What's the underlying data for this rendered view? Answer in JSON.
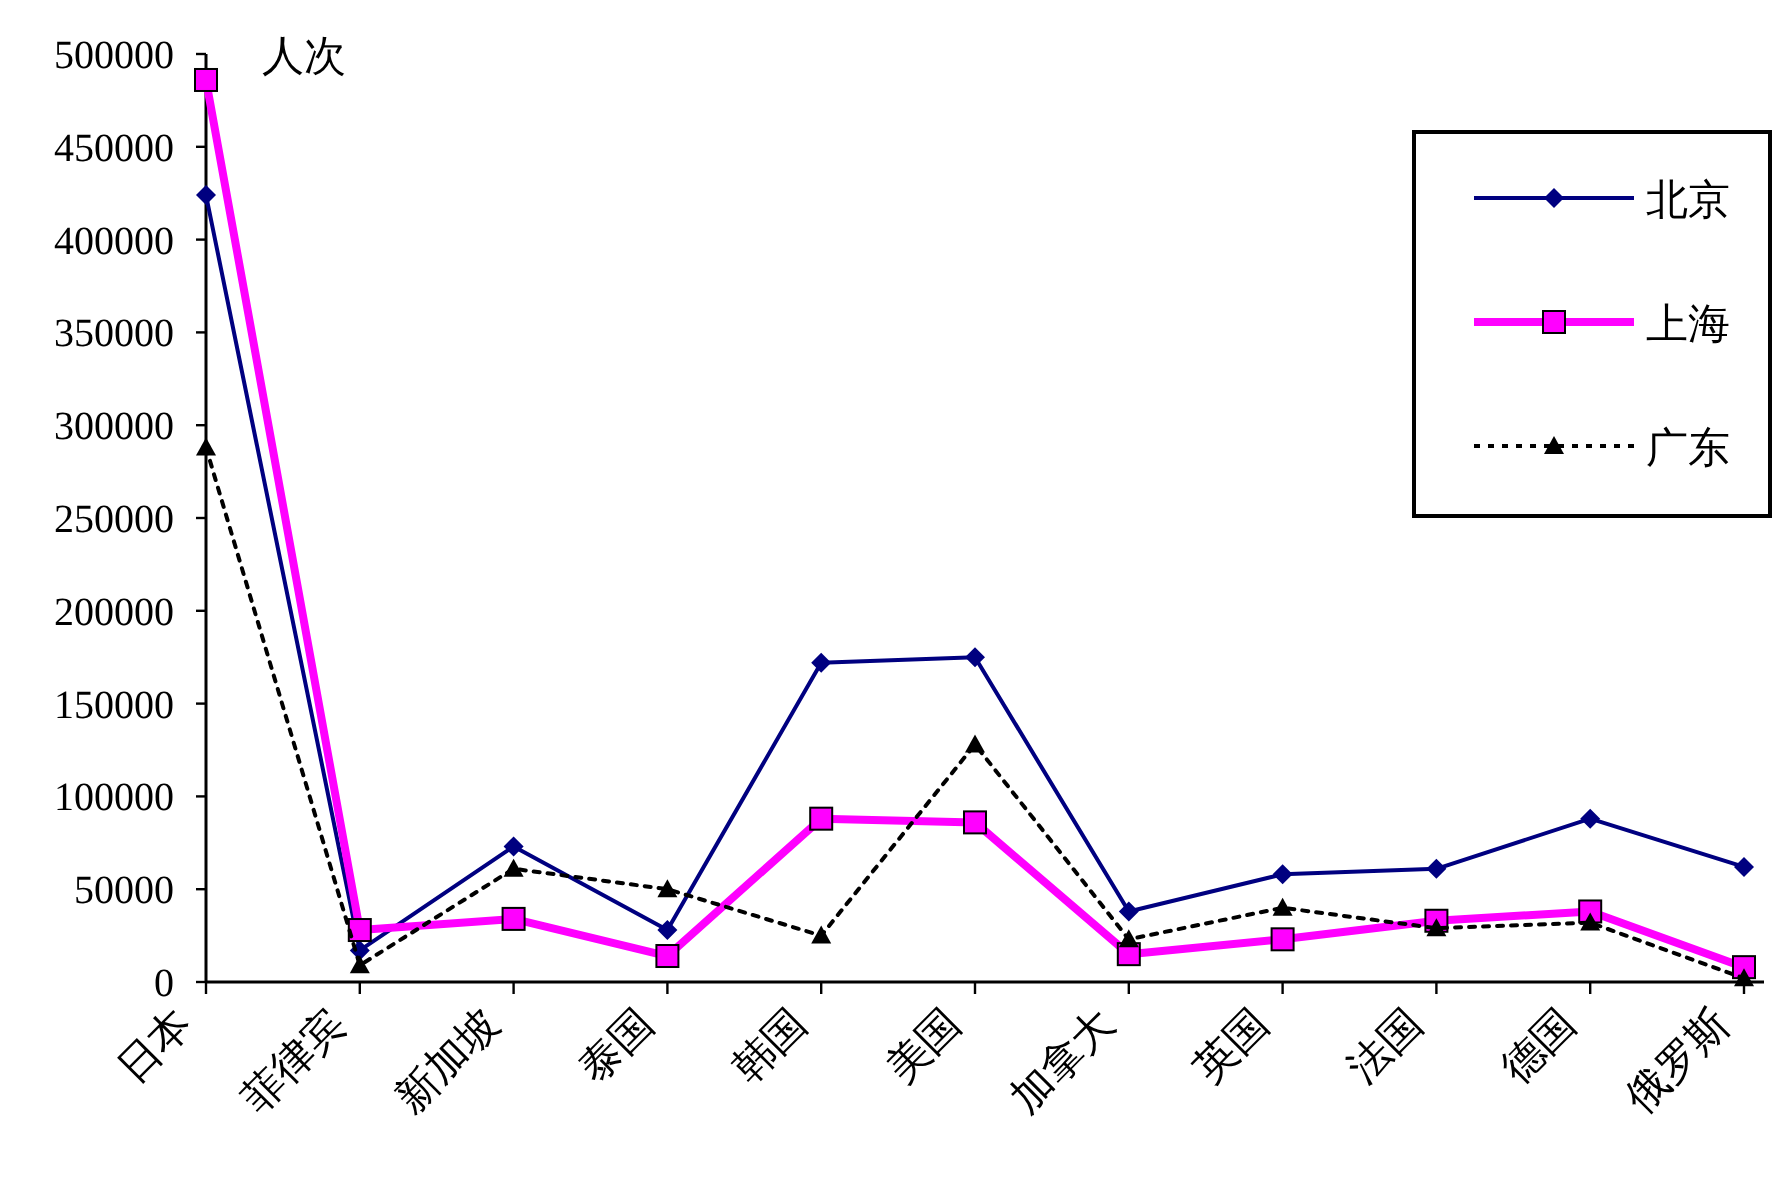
{
  "chart_data": {
    "type": "line",
    "ylabel": "人次",
    "categories": [
      "日本",
      "菲律宾",
      "新加坡",
      "泰国",
      "韩国",
      "美国",
      "加拿大",
      "英国",
      "法国",
      "德国",
      "俄罗斯"
    ],
    "series": [
      {
        "name": "北京",
        "color": "#000080",
        "marker": "diamond",
        "line_style": "solid",
        "values": [
          424000,
          17000,
          73000,
          28000,
          172000,
          175000,
          38000,
          58000,
          61000,
          88000,
          62000
        ]
      },
      {
        "name": "上海",
        "color": "#ff00ff",
        "marker": "square",
        "line_style": "solid",
        "values": [
          486000,
          28000,
          34000,
          14000,
          88000,
          86000,
          15000,
          23000,
          33000,
          38000,
          8000
        ]
      },
      {
        "name": "广东",
        "color": "#000000",
        "marker": "triangle",
        "line_style": "dotted",
        "values": [
          288000,
          9000,
          61000,
          50000,
          25000,
          128000,
          23000,
          40000,
          29000,
          32000,
          2000
        ]
      }
    ],
    "ylim": [
      0,
      500000
    ],
    "yticks": [
      0,
      50000,
      100000,
      150000,
      200000,
      250000,
      300000,
      350000,
      400000,
      450000,
      500000
    ],
    "grid": false,
    "legend": "top right"
  }
}
